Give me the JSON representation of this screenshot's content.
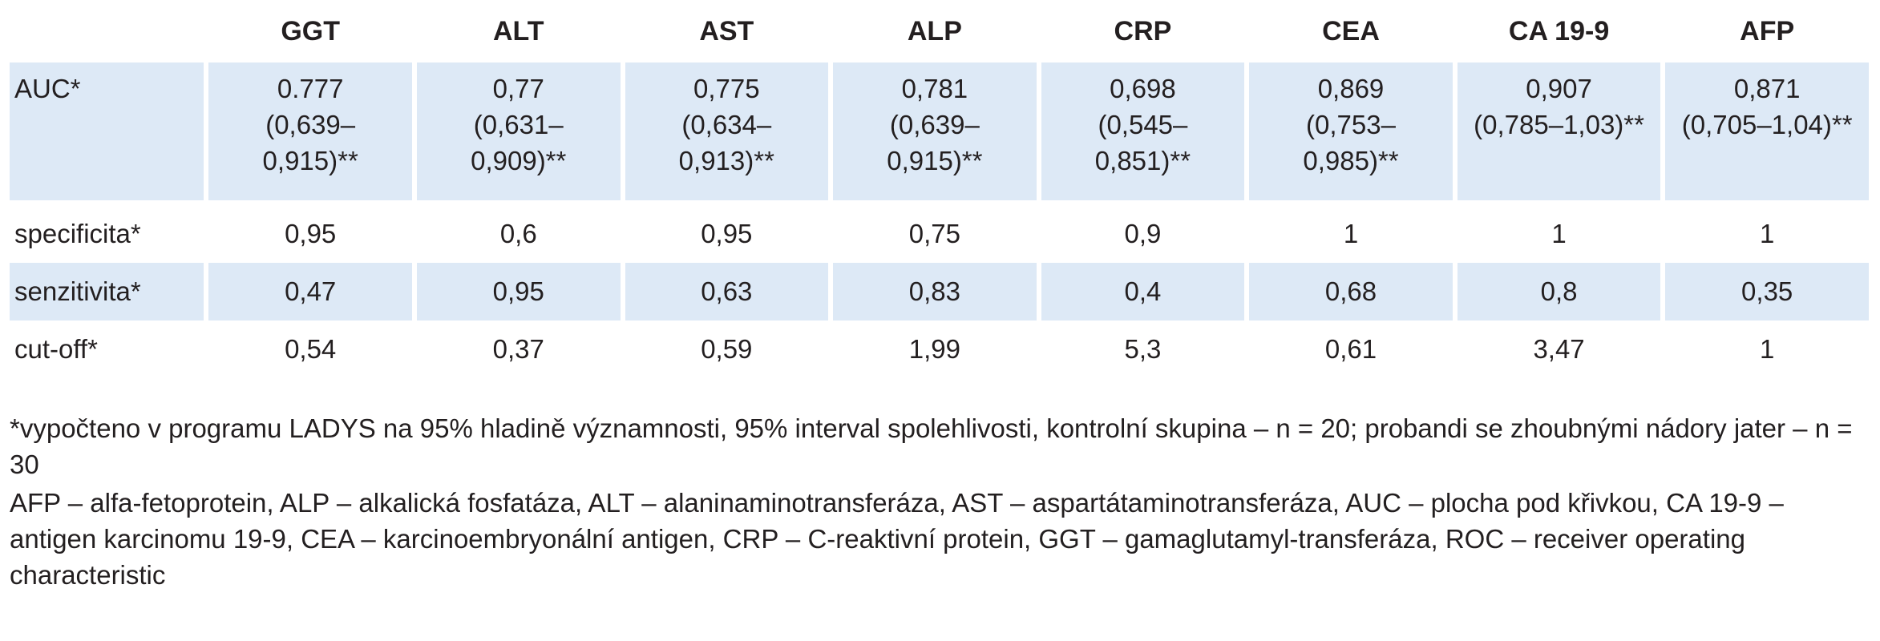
{
  "table": {
    "headers": [
      "",
      "GGT",
      "ALT",
      "AST",
      "ALP",
      "CRP",
      "CEA",
      "CA 19-9",
      "AFP"
    ],
    "auc": {
      "label": "AUC*",
      "values": [
        [
          "0.777",
          "(0,639–",
          "0,915)**"
        ],
        [
          "0,77",
          "(0,631–",
          "0,909)**"
        ],
        [
          "0,775",
          "(0,634–",
          "0,913)**"
        ],
        [
          "0,781",
          "(0,639–",
          "0,915)**"
        ],
        [
          "0,698",
          "(0,545–",
          "0,851)**"
        ],
        [
          "0,869",
          "(0,753–",
          "0,985)**"
        ],
        [
          "0,907",
          "(0,785–1,03)**"
        ],
        [
          "0,871",
          "(0,705–1,04)**"
        ]
      ]
    },
    "specificita": {
      "label": "specificita*",
      "values": [
        "0,95",
        "0,6",
        "0,95",
        "0,75",
        "0,9",
        "1",
        "1",
        "1"
      ]
    },
    "senzitivita": {
      "label": "senzitivita*",
      "values": [
        "0,47",
        "0,95",
        "0,63",
        "0,83",
        "0,4",
        "0,68",
        "0,8",
        "0,35"
      ]
    },
    "cutoff": {
      "label": "cut-off*",
      "values": [
        "0,54",
        "0,37",
        "0,59",
        "1,99",
        "5,3",
        "0,61",
        "3,47",
        "1"
      ]
    }
  },
  "notes": {
    "footnote": "*vypočteno v programu LADYS na 95% hladině významnosti, 95% interval spolehlivosti, kontrolní skupina – n = 20; probandi se zhoubnými nádory jater – n = 30",
    "abbreviations": "AFP – alfa-fetoprotein, ALP – alkalická fosfatáza, ALT – alaninaminotransferáza, AST – aspartátaminotransferáza, AUC – plocha pod křivkou, CA 19-9 – antigen karcinomu 19-9, CEA – karcinoembryonální antigen, CRP – C-reaktivní protein, GGT – gamaglutamyl-transferáza, ROC – receiver operating characteristic"
  }
}
